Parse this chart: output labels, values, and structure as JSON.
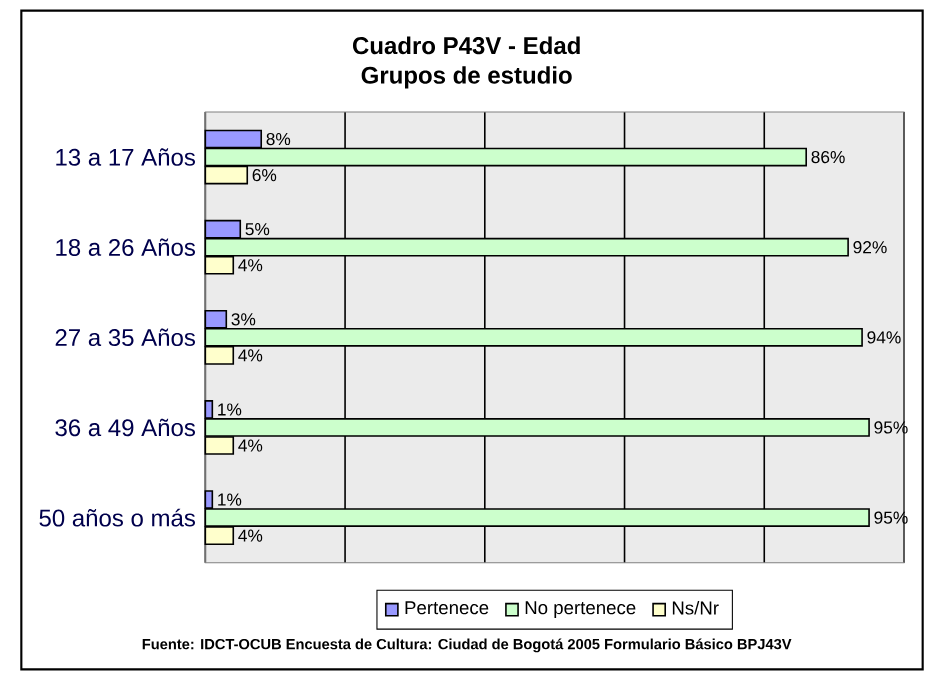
{
  "chart_data": {
    "type": "bar",
    "orientation": "horizontal",
    "title": "Cuadro P43V - Edad",
    "subtitle": "Grupos de estudio",
    "categories": [
      "13 a 17 Años",
      "18 a 26 Años",
      "27 a 35 Años",
      "36 a 49 Años",
      "50 años o más"
    ],
    "series": [
      {
        "name": "Pertenece",
        "color": "#9999ff",
        "values": [
          8,
          5,
          3,
          1,
          1
        ],
        "value_labels": [
          "8%",
          "5%",
          "3%",
          "1%",
          "1%"
        ]
      },
      {
        "name": "No pertenece",
        "color": "#ccffcc",
        "values": [
          86,
          92,
          94,
          95,
          95
        ],
        "value_labels": [
          "86%",
          "92%",
          "94%",
          "95%",
          "95%"
        ]
      },
      {
        "name": "Ns/Nr",
        "color": "#ffffcc",
        "values": [
          6,
          4,
          4,
          4,
          4
        ],
        "value_labels": [
          "6%",
          "4%",
          "4%",
          "4%",
          "4%"
        ]
      }
    ],
    "xlim": [
      0,
      100
    ],
    "xticks": [
      {
        "value": 0,
        "label": null
      },
      {
        "value": 20,
        "label": null
      },
      {
        "value": 40,
        "label": null
      },
      {
        "value": 60,
        "label": null
      },
      {
        "value": 80,
        "label": null
      },
      {
        "value": 100,
        "label": null
      }
    ],
    "grid": "x",
    "legend": "bottom",
    "tick_labels": "y",
    "annotations": [
      "Fuente: IDCT-OCUB Encuesta de Cultura: Ciudad de Bogotá 2005 Formulario Básico BPJ43V"
    ]
  }
}
